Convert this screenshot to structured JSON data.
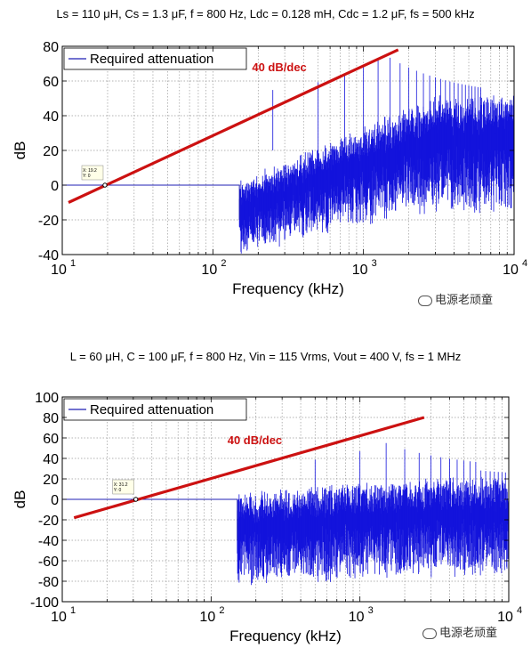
{
  "chart_data": [
    {
      "type": "line",
      "title": "Ls = 110 μH, Cs = 1.3 μF, f = 800 Hz, Ldc = 0.128 mH, Cdc = 1.2 μF, fs = 500 kHz",
      "xlabel": "Frequency (kHz)",
      "ylabel": "dB",
      "xscale": "log",
      "xlim": [
        10,
        10000
      ],
      "ylim": [
        -40,
        80
      ],
      "yticks": [
        -40,
        -20,
        0,
        20,
        40,
        60,
        80
      ],
      "xticks": [
        {
          "base": "10",
          "exp": "1",
          "value": 10
        },
        {
          "base": "10",
          "exp": "2",
          "value": 100
        },
        {
          "base": "10",
          "exp": "3",
          "value": 1000
        },
        {
          "base": "10",
          "exp": "4",
          "value": 10000
        }
      ],
      "grid": true,
      "legend": {
        "placement": "top-left",
        "entries": [
          {
            "label": "Required attenuation",
            "color": "#1f1fb4"
          }
        ]
      },
      "annotation": {
        "text": "40 dB/dec",
        "color": "#cc1111"
      },
      "datatip": {
        "x_text": "X: 19.2",
        "y_text": "Y: 0",
        "x": 19.2,
        "y": 0
      },
      "series": [
        {
          "name": "Required attenuation",
          "color": "#1f1fb4",
          "x": [
            10,
            150,
            150.01,
            200,
            400,
            700,
            1000,
            1500,
            2000,
            3000,
            5000,
            10000
          ],
          "y": [
            0,
            0,
            -20,
            -10,
            5,
            18,
            25,
            28,
            28,
            25,
            20,
            18
          ]
        },
        {
          "name": "",
          "color": "#cc1111",
          "x": [
            11,
            1700
          ],
          "y": [
            -10,
            78
          ]
        }
      ]
    },
    {
      "type": "line",
      "title": "L = 60 μH, C = 100 μF, f = 800 Hz, Vin = 115 Vrms, Vout = 400 V, fs = 1 MHz",
      "xlabel": "Frequency (kHz)",
      "ylabel": "dB",
      "xscale": "log",
      "xlim": [
        10,
        10000
      ],
      "ylim": [
        -100,
        100
      ],
      "yticks": [
        -100,
        -80,
        -60,
        -40,
        -20,
        0,
        20,
        40,
        60,
        80,
        100
      ],
      "xticks": [
        {
          "base": "10",
          "exp": "1",
          "value": 10
        },
        {
          "base": "10",
          "exp": "2",
          "value": 100
        },
        {
          "base": "10",
          "exp": "3",
          "value": 1000
        },
        {
          "base": "10",
          "exp": "4",
          "value": 10000
        }
      ],
      "grid": true,
      "legend": {
        "placement": "top-left",
        "entries": [
          {
            "label": "Required attenuation",
            "color": "#1f1fb4"
          }
        ]
      },
      "annotation": {
        "text": "40 dB/dec",
        "color": "#cc1111"
      },
      "datatip": {
        "x_text": "X: 31.2",
        "y_text": "Y: 0",
        "x": 31.2,
        "y": 0
      },
      "series": [
        {
          "name": "Required attenuation",
          "color": "#1f1fb4",
          "x": [
            10,
            150,
            150.01,
            200,
            500,
            1000,
            2000,
            5000,
            10000
          ],
          "y": [
            0,
            0,
            -40,
            -40,
            -30,
            -20,
            -20,
            -20,
            -20
          ]
        },
        {
          "name": "",
          "color": "#cc1111",
          "x": [
            12,
            2700
          ],
          "y": [
            -18,
            80
          ]
        }
      ]
    }
  ],
  "watermark": {
    "text": "电源老顽童"
  }
}
